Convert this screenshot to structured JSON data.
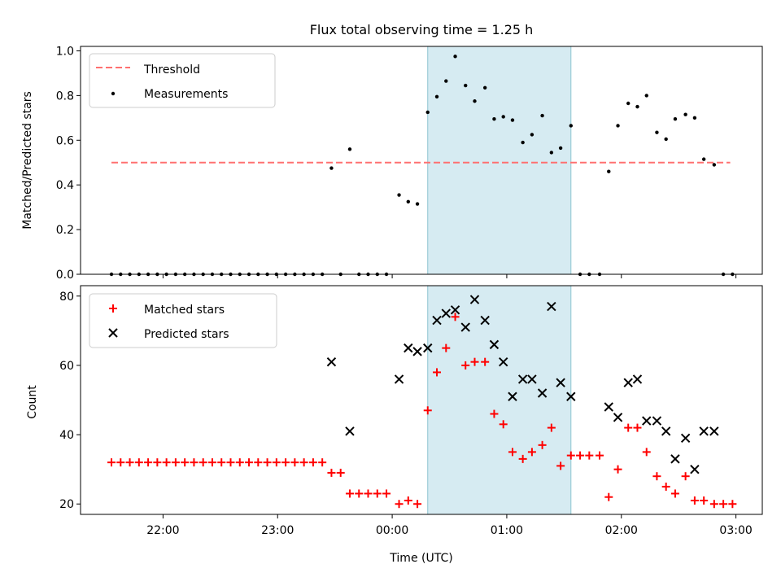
{
  "chart_data": {
    "title": "Flux total observing time = 1.25 h",
    "highlight_region": {
      "x_start": 0.31,
      "x_end": 1.56,
      "color": "#add8e6"
    },
    "xlabel": "Time (UTC)",
    "xlim": [
      -2.72,
      3.23
    ],
    "xticks": [
      {
        "value": -2,
        "label": "22:00"
      },
      {
        "value": -1,
        "label": "23:00"
      },
      {
        "value": 0,
        "label": "00:00"
      },
      {
        "value": 1,
        "label": "01:00"
      },
      {
        "value": 2,
        "label": "02:00"
      },
      {
        "value": 3,
        "label": "03:00"
      }
    ],
    "panels": [
      {
        "type": "scatter",
        "ylabel": "Matched/Predicted stars",
        "ylim": [
          0,
          1.02
        ],
        "yticks": [
          0.0,
          0.2,
          0.4,
          0.6,
          0.8,
          1.0
        ],
        "ytick_labels": [
          "0.0",
          "0.2",
          "0.4",
          "0.6",
          "0.8",
          "1.0"
        ],
        "legend_position": "upper left",
        "threshold": {
          "name": "Threshold",
          "value": 0.5,
          "x_range": [
            -2.45,
            2.95
          ],
          "color": "#ff7070"
        },
        "series": [
          {
            "name": "Measurements",
            "marker": "dot",
            "color": "#000000",
            "points": [
              [
                -2.45,
                0
              ],
              [
                -2.37,
                0
              ],
              [
                -2.29,
                0
              ],
              [
                -2.21,
                0
              ],
              [
                -2.13,
                0
              ],
              [
                -2.05,
                0
              ],
              [
                -1.97,
                0
              ],
              [
                -1.89,
                0
              ],
              [
                -1.81,
                0
              ],
              [
                -1.73,
                0
              ],
              [
                -1.65,
                0
              ],
              [
                -1.57,
                0
              ],
              [
                -1.49,
                0
              ],
              [
                -1.41,
                0
              ],
              [
                -1.33,
                0
              ],
              [
                -1.25,
                0
              ],
              [
                -1.17,
                0
              ],
              [
                -1.09,
                0
              ],
              [
                -1.01,
                0
              ],
              [
                -0.93,
                0
              ],
              [
                -0.85,
                0
              ],
              [
                -0.77,
                0
              ],
              [
                -0.69,
                0
              ],
              [
                -0.61,
                0
              ],
              [
                -0.53,
                0.475
              ],
              [
                -0.45,
                0
              ],
              [
                -0.37,
                0.56
              ],
              [
                -0.29,
                0
              ],
              [
                -0.21,
                0
              ],
              [
                -0.13,
                0
              ],
              [
                -0.05,
                0
              ],
              [
                0.06,
                0.355
              ],
              [
                0.14,
                0.325
              ],
              [
                0.22,
                0.315
              ],
              [
                0.31,
                0.725
              ],
              [
                0.39,
                0.795
              ],
              [
                0.47,
                0.865
              ],
              [
                0.55,
                0.975
              ],
              [
                0.64,
                0.845
              ],
              [
                0.72,
                0.775
              ],
              [
                0.81,
                0.835
              ],
              [
                0.89,
                0.695
              ],
              [
                0.97,
                0.705
              ],
              [
                1.05,
                0.69
              ],
              [
                1.14,
                0.59
              ],
              [
                1.22,
                0.625
              ],
              [
                1.31,
                0.71
              ],
              [
                1.39,
                0.545
              ],
              [
                1.47,
                0.565
              ],
              [
                1.56,
                0.665
              ],
              [
                1.64,
                0
              ],
              [
                1.72,
                0
              ],
              [
                1.81,
                0
              ],
              [
                1.89,
                0.46
              ],
              [
                1.97,
                0.665
              ],
              [
                2.06,
                0.765
              ],
              [
                2.14,
                0.75
              ],
              [
                2.22,
                0.8
              ],
              [
                2.31,
                0.635
              ],
              [
                2.39,
                0.605
              ],
              [
                2.47,
                0.695
              ],
              [
                2.56,
                0.715
              ],
              [
                2.64,
                0.7
              ],
              [
                2.72,
                0.515
              ],
              [
                2.81,
                0.49
              ],
              [
                2.89,
                0
              ],
              [
                2.97,
                0
              ]
            ]
          }
        ]
      },
      {
        "type": "scatter",
        "ylabel": "Count",
        "ylim": [
          17,
          83
        ],
        "yticks": [
          20,
          40,
          60,
          80
        ],
        "ytick_labels": [
          "20",
          "40",
          "60",
          "80"
        ],
        "legend_position": "upper left",
        "series": [
          {
            "name": "Matched stars",
            "marker": "plus",
            "color": "#ff0000",
            "points": [
              [
                -2.45,
                32
              ],
              [
                -2.37,
                32
              ],
              [
                -2.29,
                32
              ],
              [
                -2.21,
                32
              ],
              [
                -2.13,
                32
              ],
              [
                -2.05,
                32
              ],
              [
                -1.97,
                32
              ],
              [
                -1.89,
                32
              ],
              [
                -1.81,
                32
              ],
              [
                -1.73,
                32
              ],
              [
                -1.65,
                32
              ],
              [
                -1.57,
                32
              ],
              [
                -1.49,
                32
              ],
              [
                -1.41,
                32
              ],
              [
                -1.33,
                32
              ],
              [
                -1.25,
                32
              ],
              [
                -1.17,
                32
              ],
              [
                -1.09,
                32
              ],
              [
                -1.01,
                32
              ],
              [
                -0.93,
                32
              ],
              [
                -0.85,
                32
              ],
              [
                -0.77,
                32
              ],
              [
                -0.69,
                32
              ],
              [
                -0.61,
                32
              ],
              [
                -0.53,
                29
              ],
              [
                -0.45,
                29
              ],
              [
                -0.37,
                23
              ],
              [
                -0.29,
                23
              ],
              [
                -0.21,
                23
              ],
              [
                -0.13,
                23
              ],
              [
                -0.05,
                23
              ],
              [
                0.06,
                20
              ],
              [
                0.14,
                21
              ],
              [
                0.22,
                20
              ],
              [
                0.31,
                47
              ],
              [
                0.39,
                58
              ],
              [
                0.47,
                65
              ],
              [
                0.55,
                74
              ],
              [
                0.64,
                60
              ],
              [
                0.72,
                61
              ],
              [
                0.81,
                61
              ],
              [
                0.89,
                46
              ],
              [
                0.97,
                43
              ],
              [
                1.05,
                35
              ],
              [
                1.14,
                33
              ],
              [
                1.22,
                35
              ],
              [
                1.31,
                37
              ],
              [
                1.39,
                42
              ],
              [
                1.47,
                31
              ],
              [
                1.56,
                34
              ],
              [
                1.64,
                34
              ],
              [
                1.72,
                34
              ],
              [
                1.81,
                34
              ],
              [
                1.89,
                22
              ],
              [
                1.97,
                30
              ],
              [
                2.06,
                42
              ],
              [
                2.14,
                42
              ],
              [
                2.22,
                35
              ],
              [
                2.31,
                28
              ],
              [
                2.39,
                25
              ],
              [
                2.47,
                23
              ],
              [
                2.56,
                28
              ],
              [
                2.64,
                21
              ],
              [
                2.72,
                21
              ],
              [
                2.81,
                20
              ],
              [
                2.89,
                20
              ],
              [
                2.97,
                20
              ]
            ]
          },
          {
            "name": "Predicted stars",
            "marker": "x",
            "color": "#000000",
            "points": [
              [
                -0.53,
                61
              ],
              [
                -0.37,
                41
              ],
              [
                0.06,
                56
              ],
              [
                0.14,
                65
              ],
              [
                0.22,
                64
              ],
              [
                0.31,
                65
              ],
              [
                0.39,
                73
              ],
              [
                0.47,
                75
              ],
              [
                0.55,
                76
              ],
              [
                0.64,
                71
              ],
              [
                0.72,
                79
              ],
              [
                0.81,
                73
              ],
              [
                0.89,
                66
              ],
              [
                0.97,
                61
              ],
              [
                1.05,
                51
              ],
              [
                1.14,
                56
              ],
              [
                1.22,
                56
              ],
              [
                1.31,
                52
              ],
              [
                1.39,
                77
              ],
              [
                1.47,
                55
              ],
              [
                1.56,
                51
              ],
              [
                1.89,
                48
              ],
              [
                1.97,
                45
              ],
              [
                2.06,
                55
              ],
              [
                2.14,
                56
              ],
              [
                2.22,
                44
              ],
              [
                2.31,
                44
              ],
              [
                2.39,
                41
              ],
              [
                2.47,
                33
              ],
              [
                2.56,
                39
              ],
              [
                2.64,
                30
              ],
              [
                2.72,
                41
              ],
              [
                2.81,
                41
              ]
            ]
          }
        ]
      }
    ]
  }
}
